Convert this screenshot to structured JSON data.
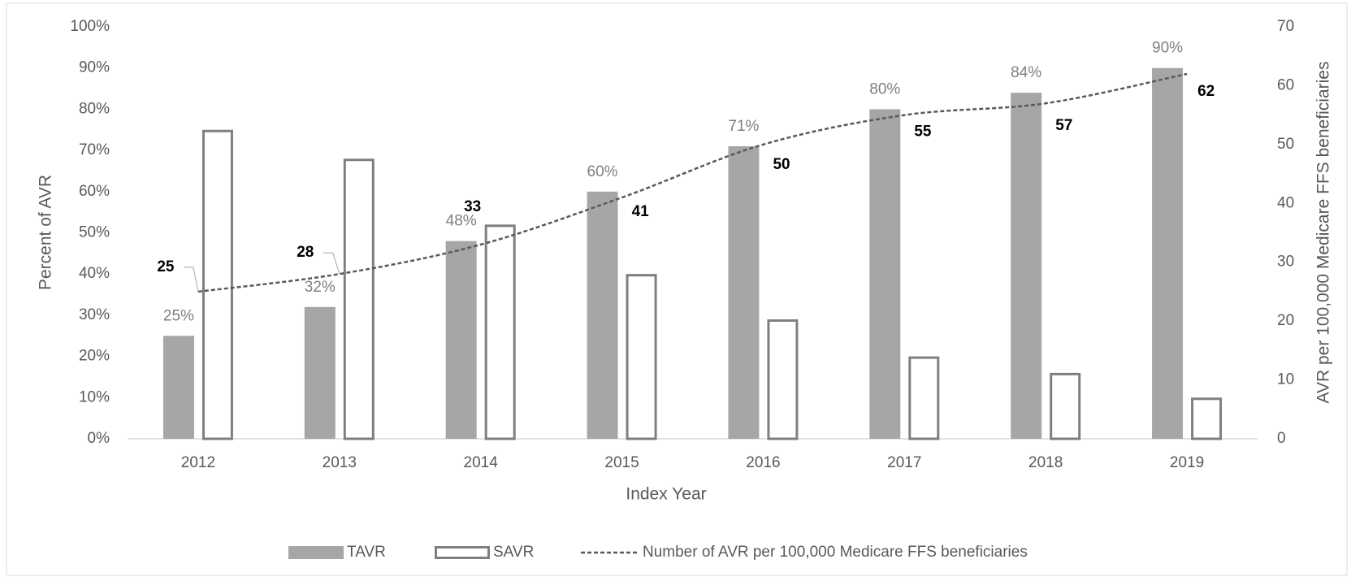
{
  "chart_data": {
    "type": "bar",
    "x_label": "Index Year",
    "y_label": "Percent of AVR",
    "y2_label": "AVR per 100,000 Medicare FFS beneficiaries",
    "categories": [
      "2012",
      "2013",
      "2014",
      "2015",
      "2016",
      "2017",
      "2018",
      "2019"
    ],
    "series": [
      {
        "name": "TAVR",
        "color": "#a6a6a6",
        "type": "bar",
        "values": [
          25,
          32,
          48,
          60,
          71,
          80,
          84,
          90
        ],
        "value_labels": [
          "25%",
          "32%",
          "48%",
          "60%",
          "71%",
          "80%",
          "84%",
          "90%"
        ]
      },
      {
        "name": "SAVR",
        "color": "#7f7f7f",
        "type": "bar",
        "values": [
          75,
          68,
          52,
          40,
          29,
          20,
          16,
          10
        ]
      },
      {
        "name": "Number of AVR per 100,000 Medicare FFS beneficiaries",
        "color": "#595959",
        "type": "line",
        "axis": "y2",
        "values": [
          25,
          28,
          33,
          41,
          50,
          55,
          57,
          62
        ]
      }
    ],
    "ylim": [
      0,
      100
    ],
    "yticks": [
      {
        "value": 0,
        "label": "0%"
      },
      {
        "value": 10,
        "label": "10%"
      },
      {
        "value": 20,
        "label": "20%"
      },
      {
        "value": 30,
        "label": "30%"
      },
      {
        "value": 40,
        "label": "40%"
      },
      {
        "value": 50,
        "label": "50%"
      },
      {
        "value": 60,
        "label": "60%"
      },
      {
        "value": 70,
        "label": "70%"
      },
      {
        "value": 80,
        "label": "80%"
      },
      {
        "value": 90,
        "label": "90%"
      },
      {
        "value": 100,
        "label": "100%"
      }
    ],
    "y2lim": [
      0,
      70
    ],
    "y2ticks": [
      0,
      10,
      20,
      30,
      40,
      50,
      60,
      70
    ],
    "grid": false,
    "legend": "bottom"
  }
}
